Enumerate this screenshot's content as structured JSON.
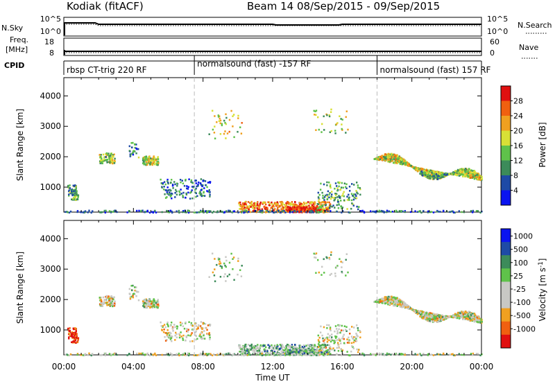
{
  "header": {
    "site": "Kodiak (fitACF)",
    "beam_dates": "Beam 14 08/Sep/2015 - 09/Sep/2015"
  },
  "colors": {
    "power": [
      "#0a14f0",
      "#1e4aa6",
      "#3c8b5a",
      "#5fc24a",
      "#d8e036",
      "#f0a020",
      "#f06010",
      "#e01010"
    ],
    "velocity": [
      "#e01010",
      "#f06010",
      "#f0a020",
      "#c8c8c4",
      "#c8c8c4",
      "#5fc24a",
      "#3c8b5a",
      "#1e4aa6",
      "#0a14f0"
    ],
    "ground_scatter": "#c8c8c4",
    "noise_line": "#000000"
  },
  "chart_data": [
    {
      "type": "line",
      "panel": "noise",
      "left_label": "N.Sky",
      "right_label": "N.Search",
      "left_ticks": [
        "10^5",
        "10^0"
      ],
      "right_ticks": [
        "10^5",
        "10^0"
      ],
      "scale": "log"
    },
    {
      "type": "line",
      "panel": "frequency",
      "left_label_1": "Freq.",
      "left_label_2": "[MHz]",
      "right_label": "Nave",
      "left_ticks": [
        "18",
        "8"
      ],
      "right_ticks": [
        "60",
        "0"
      ]
    },
    {
      "type": "table",
      "panel": "cpid",
      "label": "CPID",
      "segments": [
        {
          "start_hour": 0,
          "text": "rbsp CT-trig 220 RF"
        },
        {
          "start_hour": 7.5,
          "text": "normalsound (fast) -157 RF"
        },
        {
          "start_hour": 18,
          "text": "normalsound (fast) 157 RF"
        }
      ]
    },
    {
      "type": "heatmap",
      "panel": "power",
      "ylabel": "Slant Range [km]",
      "yticks": [
        1000,
        2000,
        3000,
        4000
      ],
      "ylim": [
        180,
        4600
      ],
      "xlim_hours": [
        0,
        24
      ],
      "colorbar_label": "Power [dB]",
      "colorbar_ticks": [
        "28",
        "24",
        "20",
        "16",
        "12",
        "8",
        "4"
      ],
      "colorbar_range": [
        0,
        32
      ],
      "mode_boundaries_hours": [
        7.5,
        18
      ]
    },
    {
      "type": "heatmap",
      "panel": "velocity",
      "ylabel": "Slant Range [km]",
      "yticks": [
        1000,
        2000,
        3000,
        4000
      ],
      "ylim": [
        180,
        4600
      ],
      "xlim_hours": [
        0,
        24
      ],
      "xticks": [
        "00:00",
        "04:00",
        "08:00",
        "12:00",
        "16:00",
        "20:00",
        "00:00"
      ],
      "xlabel": "Time UT",
      "colorbar_label": "Velocity [m s",
      "colorbar_unit_exp": "-1",
      "colorbar_unit_close": "]",
      "colorbar_ticks": [
        "1000",
        "500",
        "100",
        "25",
        "-25",
        "-100",
        "-500",
        "-1000"
      ],
      "mode_boundaries_hours": [
        7.5,
        18
      ]
    }
  ]
}
